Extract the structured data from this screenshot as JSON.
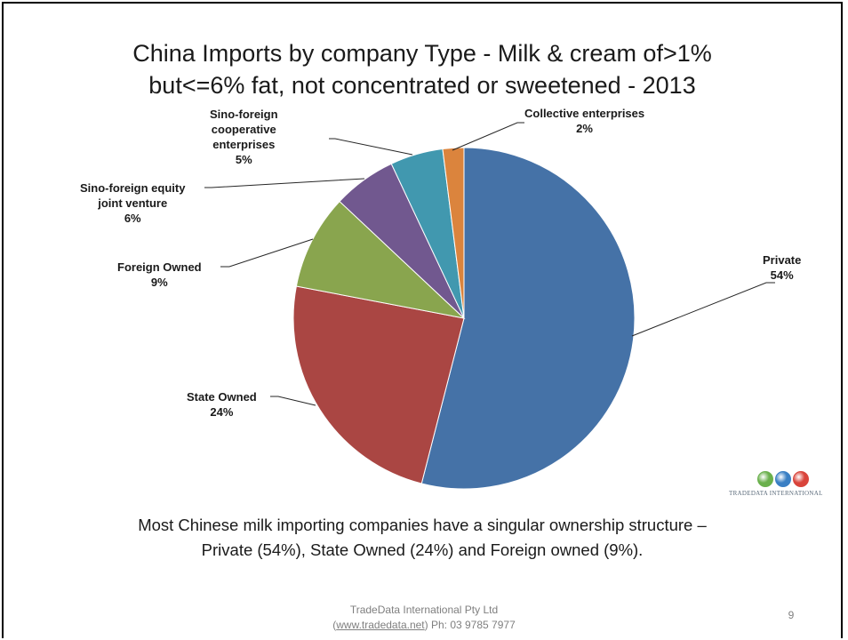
{
  "chart_data": {
    "type": "pie",
    "title": [
      "China Imports by company Type - Milk & cream of>1%",
      "but<=6% fat, not concentrated or sweetened - 2013"
    ],
    "slices": [
      {
        "name": "Private",
        "value": 54,
        "label": "54%",
        "color": "#4572a7"
      },
      {
        "name": "State Owned",
        "value": 24,
        "label": "24%",
        "color": "#aa4643"
      },
      {
        "name": "Foreign Owned",
        "value": 9,
        "label": "9%",
        "color": "#89a54e"
      },
      {
        "name": "Sino-foreign equity joint venture",
        "value": 6,
        "label": "6%",
        "color": "#71588f"
      },
      {
        "name": "Sino-foreign cooperative enterprises",
        "value": 5,
        "label": "5%",
        "color": "#4198af"
      },
      {
        "name": "Collective enterprises",
        "value": 2,
        "label": "2%",
        "color": "#db843d"
      }
    ],
    "label_lines": {
      "private": [
        "Private",
        "54%"
      ],
      "state": [
        "State Owned",
        "24%"
      ],
      "foreign": [
        "Foreign Owned",
        "9%"
      ],
      "equity": [
        "Sino-foreign equity",
        "joint venture",
        "6%"
      ],
      "coop": [
        "Sino-foreign",
        "cooperative",
        "enterprises",
        "5%"
      ],
      "collective": [
        "Collective enterprises",
        "2%"
      ]
    }
  },
  "caption": {
    "line1": "Most Chinese milk importing  companies have a singular ownership structure –",
    "line2": "Private (54%), State Owned (24%) and Foreign owned (9%)."
  },
  "logo": {
    "name": "TRADEDATA INTERNATIONAL",
    "globe_colors": [
      "#6ab04c",
      "#3a7fc4",
      "#d9443b"
    ]
  },
  "footer": {
    "company": "TradeData International Pty Ltd",
    "link_text": "www.tradedata.net",
    "phone": "Ph: 03 9785 7977",
    "open_paren": "(",
    "close_paren": ")"
  },
  "page_number": "9"
}
